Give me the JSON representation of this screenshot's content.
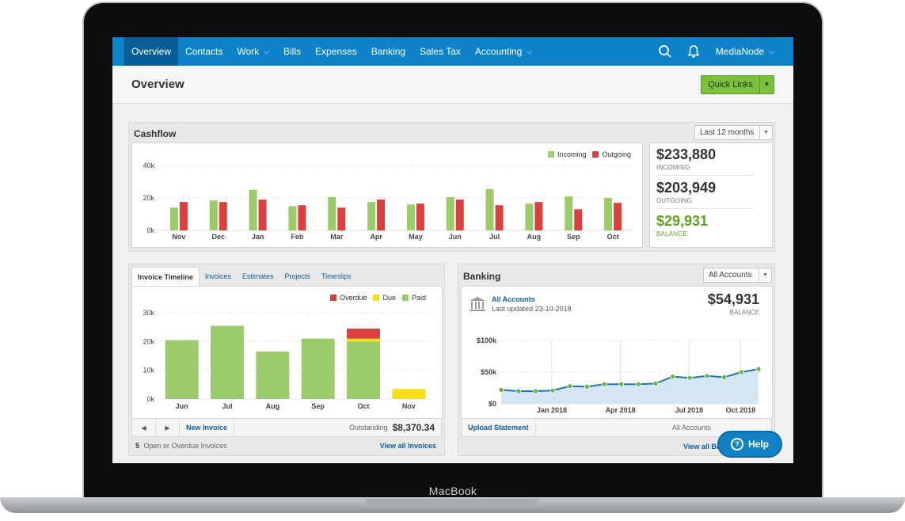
{
  "device": {
    "brand": "MacBook"
  },
  "nav": {
    "items": [
      {
        "label": "Overview",
        "active": true,
        "dropdown": false
      },
      {
        "label": "Contacts",
        "active": false,
        "dropdown": false
      },
      {
        "label": "Work",
        "active": false,
        "dropdown": true
      },
      {
        "label": "Bills",
        "active": false,
        "dropdown": false
      },
      {
        "label": "Expenses",
        "active": false,
        "dropdown": false
      },
      {
        "label": "Banking",
        "active": false,
        "dropdown": false
      },
      {
        "label": "Sales Tax",
        "active": false,
        "dropdown": false
      },
      {
        "label": "Accounting",
        "active": false,
        "dropdown": true
      }
    ],
    "org": "MediaNode",
    "search_icon": "search-icon",
    "bell_icon": "bell-icon"
  },
  "page": {
    "title": "Overview",
    "quick_links": "Quick Links"
  },
  "cashflow": {
    "title": "Cashflow",
    "period": "Last 12 months",
    "legend": {
      "incoming": "Incoming",
      "outgoing": "Outgoing"
    },
    "colors": {
      "incoming": "#9ccb6b",
      "outgoing": "#d9403f"
    },
    "summary": {
      "incoming_amount": "$233,880",
      "incoming_label": "INCOMING",
      "outgoing_amount": "$203,949",
      "outgoing_label": "OUTGOING",
      "balance_amount": "$29,931",
      "balance_label": "BALANCE",
      "balance_color": "#5ea020"
    }
  },
  "invoices": {
    "tabs": [
      "Invoice Timeline",
      "Invoices",
      "Estimates",
      "Projects",
      "Timeslips"
    ],
    "legend": {
      "overdue": "Overdue",
      "due": "Due",
      "paid": "Paid"
    },
    "colors": {
      "overdue": "#d9403f",
      "due": "#f5de12",
      "paid": "#9ccb6b"
    },
    "new_invoice": "New Invoice",
    "outstanding_label": "Outstanding",
    "outstanding_value": "$8,370.34",
    "open_count": "5",
    "open_label": "Open or Overdue Invoices",
    "view_all": "View all Invoices"
  },
  "banking": {
    "title": "Banking",
    "account_select": "All Accounts",
    "account_name": "All Accounts",
    "last_updated": "Last updated 23-10-2018",
    "balance": "$54,931",
    "balance_label": "BALANCE",
    "upload": "Upload Statement",
    "footer_account": "All Accounts",
    "view_all": "View all Ba",
    "bank_icon": "bank-icon"
  },
  "help": {
    "label": "Help"
  },
  "chart_data": [
    {
      "id": "cashflow",
      "type": "bar",
      "title": "",
      "categories": [
        "Nov",
        "Dec",
        "Jan",
        "Feb",
        "Mar",
        "Apr",
        "May",
        "Jun",
        "Jul",
        "Aug",
        "Sep",
        "Oct"
      ],
      "series": [
        {
          "name": "Incoming",
          "values": [
            14000,
            18500,
            25000,
            15000,
            20500,
            17500,
            16000,
            20500,
            25500,
            16500,
            21000,
            20000
          ]
        },
        {
          "name": "Outgoing",
          "values": [
            17500,
            17500,
            19000,
            15500,
            14000,
            19000,
            16500,
            19000,
            15500,
            17500,
            13000,
            17000
          ]
        }
      ],
      "y_ticks": [
        "0k",
        "20k",
        "40k"
      ],
      "ylim": [
        0,
        40000
      ],
      "grid": true,
      "legend_position": "top-right"
    },
    {
      "id": "invoice_timeline",
      "type": "bar",
      "stacked": true,
      "title": "",
      "categories": [
        "Jun",
        "Jul",
        "Aug",
        "Sep",
        "Oct",
        "Nov"
      ],
      "series": [
        {
          "name": "Paid",
          "values": [
            20500,
            25500,
            16500,
            21000,
            20000,
            0
          ]
        },
        {
          "name": "Due",
          "values": [
            0,
            0,
            0,
            0,
            1000,
            3500
          ]
        },
        {
          "name": "Overdue",
          "values": [
            0,
            0,
            0,
            0,
            3500,
            0
          ]
        }
      ],
      "y_ticks": [
        "0k",
        "10k",
        "20k",
        "30k"
      ],
      "ylim": [
        0,
        30000
      ],
      "grid": true,
      "legend_position": "top-right"
    },
    {
      "id": "banking_balance",
      "type": "area",
      "title": "",
      "x_ticks": [
        "Jan 2018",
        "Apr 2018",
        "Jul 2018",
        "Oct 2018"
      ],
      "values": [
        22000,
        20000,
        20000,
        21000,
        28000,
        27000,
        31000,
        31000,
        31000,
        32000,
        43000,
        41000,
        44000,
        42000,
        50000,
        54931
      ],
      "y_ticks": [
        "$0",
        "$50k",
        "$100k"
      ],
      "ylim": [
        0,
        100000
      ],
      "grid": true
    }
  ]
}
